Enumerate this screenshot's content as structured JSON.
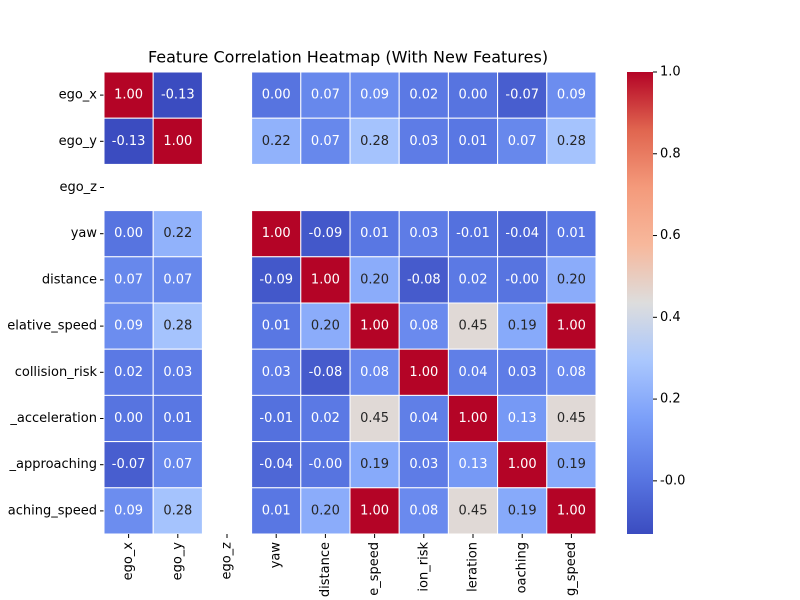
{
  "chart_data": {
    "type": "heatmap",
    "title": "Feature Correlation Heatmap (With New Features)",
    "row_labels": [
      "ego_x",
      "ego_y",
      "ego_z",
      "yaw",
      "distance",
      "elative_speed",
      "collision_risk",
      "_acceleration",
      "_approaching",
      "aching_speed"
    ],
    "categories": [
      "ego_x",
      "ego_y",
      "ego_z",
      "yaw",
      "distance",
      "e_speed",
      "ion_risk",
      "leration",
      "oaching",
      "g_speed"
    ],
    "values": [
      [
        1.0,
        -0.13,
        null,
        0.0,
        0.07,
        0.09,
        0.02,
        0.0,
        -0.07,
        0.09
      ],
      [
        -0.13,
        1.0,
        null,
        0.22,
        0.07,
        0.28,
        0.03,
        0.01,
        0.07,
        0.28
      ],
      [
        null,
        null,
        null,
        null,
        null,
        null,
        null,
        null,
        null,
        null
      ],
      [
        0.0,
        0.22,
        null,
        1.0,
        -0.09,
        0.01,
        0.03,
        -0.01,
        -0.04,
        0.01
      ],
      [
        0.07,
        0.07,
        null,
        -0.09,
        1.0,
        0.2,
        -0.08,
        0.02,
        0.0,
        0.2
      ],
      [
        0.09,
        0.28,
        null,
        0.01,
        0.2,
        1.0,
        0.08,
        0.45,
        0.19,
        1.0
      ],
      [
        0.02,
        0.03,
        null,
        0.03,
        -0.08,
        0.08,
        1.0,
        0.04,
        0.03,
        0.08
      ],
      [
        0.0,
        0.01,
        null,
        -0.01,
        0.02,
        0.45,
        0.04,
        1.0,
        0.13,
        0.45
      ],
      [
        -0.07,
        0.07,
        null,
        -0.04,
        0.0,
        0.19,
        0.03,
        0.13,
        1.0,
        0.19
      ],
      [
        0.09,
        0.28,
        null,
        0.01,
        0.2,
        1.0,
        0.08,
        0.45,
        0.19,
        1.0
      ]
    ],
    "value_labels": [
      [
        "1.00",
        "-0.13",
        null,
        "0.00",
        "0.07",
        "0.09",
        "0.02",
        "0.00",
        "-0.07",
        "0.09"
      ],
      [
        "-0.13",
        "1.00",
        null,
        "0.22",
        "0.07",
        "0.28",
        "0.03",
        "0.01",
        "0.07",
        "0.28"
      ],
      [
        null,
        null,
        null,
        null,
        null,
        null,
        null,
        null,
        null,
        null
      ],
      [
        "0.00",
        "0.22",
        null,
        "1.00",
        "-0.09",
        "0.01",
        "0.03",
        "-0.01",
        "-0.04",
        "0.01"
      ],
      [
        "0.07",
        "0.07",
        null,
        "-0.09",
        "1.00",
        "0.20",
        "-0.08",
        "0.02",
        "-0.00",
        "0.20"
      ],
      [
        "0.09",
        "0.28",
        null,
        "0.01",
        "0.20",
        "1.00",
        "0.08",
        "0.45",
        "0.19",
        "1.00"
      ],
      [
        "0.02",
        "0.03",
        null,
        "0.03",
        "-0.08",
        "0.08",
        "1.00",
        "0.04",
        "0.03",
        "0.08"
      ],
      [
        "0.00",
        "0.01",
        null,
        "-0.01",
        "0.02",
        "0.45",
        "0.04",
        "1.00",
        "0.13",
        "0.45"
      ],
      [
        "-0.07",
        "0.07",
        null,
        "-0.04",
        "-0.00",
        "0.19",
        "0.03",
        "0.13",
        "1.00",
        "0.19"
      ],
      [
        "0.09",
        "0.28",
        null,
        "0.01",
        "0.20",
        "1.00",
        "0.08",
        "0.45",
        "0.19",
        "1.00"
      ]
    ],
    "clim": [
      -0.13,
      1.0
    ],
    "cticks": [
      {
        "value": 0,
        "label": "-0.0"
      },
      0.2,
      0.4,
      0.6,
      0.8,
      {
        "value": 1.0,
        "label": "1.0"
      }
    ],
    "colormap": [
      "#3b4cc0",
      "#5977e3",
      "#7b9ff9",
      "#aac7fd",
      "#dddddd",
      "#f7b89c",
      "#f49a7b",
      "#e0654f",
      "#b40426"
    ]
  }
}
